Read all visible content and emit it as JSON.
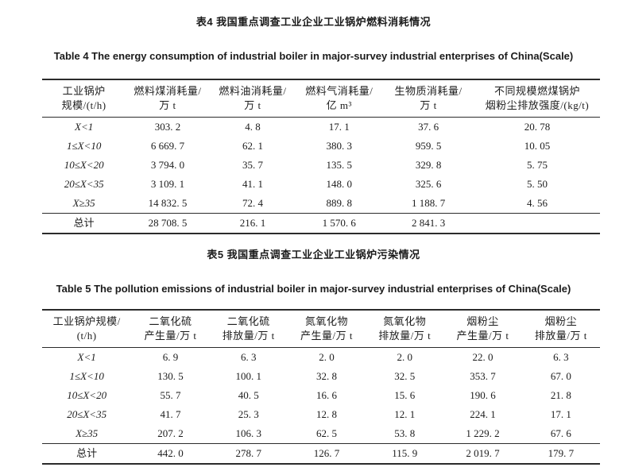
{
  "page": {
    "background_color": "#ffffff",
    "text_color": "#1f1f1f",
    "rule_color": "#2b2b2b"
  },
  "table4": {
    "title_zh": "表4 我国重点调查工业企业工业锅炉燃料消耗情况",
    "title_en": "Table 4 The energy consumption of industrial boiler in major-survey industrial enterprises of China(Scale)",
    "headers": [
      {
        "line1": "工业锅炉",
        "line2": "规模/(t/h)"
      },
      {
        "line1": "燃料煤消耗量/",
        "line2": "万 t"
      },
      {
        "line1": "燃料油消耗量/",
        "line2": "万 t"
      },
      {
        "line1": "燃料气消耗量/",
        "line2": "亿 m³"
      },
      {
        "line1": "生物质消耗量/",
        "line2": "万 t"
      },
      {
        "line1": "不同规模燃煤锅炉",
        "line2": "烟粉尘排放强度/(kg/t)"
      }
    ],
    "rows": [
      [
        "X<1",
        "303. 2",
        "4. 8",
        "17. 1",
        "37. 6",
        "20. 78"
      ],
      [
        "1≤X<10",
        "6 669. 7",
        "62. 1",
        "380. 3",
        "959. 5",
        "10. 05"
      ],
      [
        "10≤X<20",
        "3 794. 0",
        "35. 7",
        "135. 5",
        "329. 8",
        "5. 75"
      ],
      [
        "20≤X<35",
        "3 109. 1",
        "41. 1",
        "148. 0",
        "325. 6",
        "5. 50"
      ],
      [
        "X≥35",
        "14 832. 5",
        "72. 4",
        "889. 8",
        "1 188. 7",
        "4. 56"
      ]
    ],
    "total_row": [
      "总计",
      "28 708. 5",
      "216. 1",
      "1 570. 6",
      "2 841. 3",
      ""
    ]
  },
  "table5": {
    "title_zh": "表5 我国重点调查工业企业工业锅炉污染情况",
    "title_en": "Table 5 The pollution emissions of industrial boiler in major-survey industrial enterprises of China(Scale)",
    "headers": [
      {
        "line1": "工业锅炉规模/",
        "line2": "(t/h)"
      },
      {
        "line1": "二氧化硫",
        "line2": "产生量/万 t"
      },
      {
        "line1": "二氧化硫",
        "line2": "排放量/万 t"
      },
      {
        "line1": "氮氧化物",
        "line2": "产生量/万 t"
      },
      {
        "line1": "氮氧化物",
        "line2": "排放量/万 t"
      },
      {
        "line1": "烟粉尘",
        "line2": "产生量/万 t"
      },
      {
        "line1": "烟粉尘",
        "line2": "排放量/万 t"
      }
    ],
    "rows": [
      [
        "X<1",
        "6. 9",
        "6. 3",
        "2. 0",
        "2. 0",
        "22. 0",
        "6. 3"
      ],
      [
        "1≤X<10",
        "130. 5",
        "100. 1",
        "32. 8",
        "32. 5",
        "353. 7",
        "67. 0"
      ],
      [
        "10≤X<20",
        "55. 7",
        "40. 5",
        "16. 6",
        "15. 6",
        "190. 6",
        "21. 8"
      ],
      [
        "20≤X<35",
        "41. 7",
        "25. 3",
        "12. 8",
        "12. 1",
        "224. 1",
        "17. 1"
      ],
      [
        "X≥35",
        "207. 2",
        "106. 3",
        "62. 5",
        "53. 8",
        "1 229. 2",
        "67. 6"
      ]
    ],
    "total_row": [
      "总计",
      "442. 0",
      "278. 7",
      "126. 7",
      "115. 9",
      "2 019. 7",
      "179. 7"
    ]
  }
}
